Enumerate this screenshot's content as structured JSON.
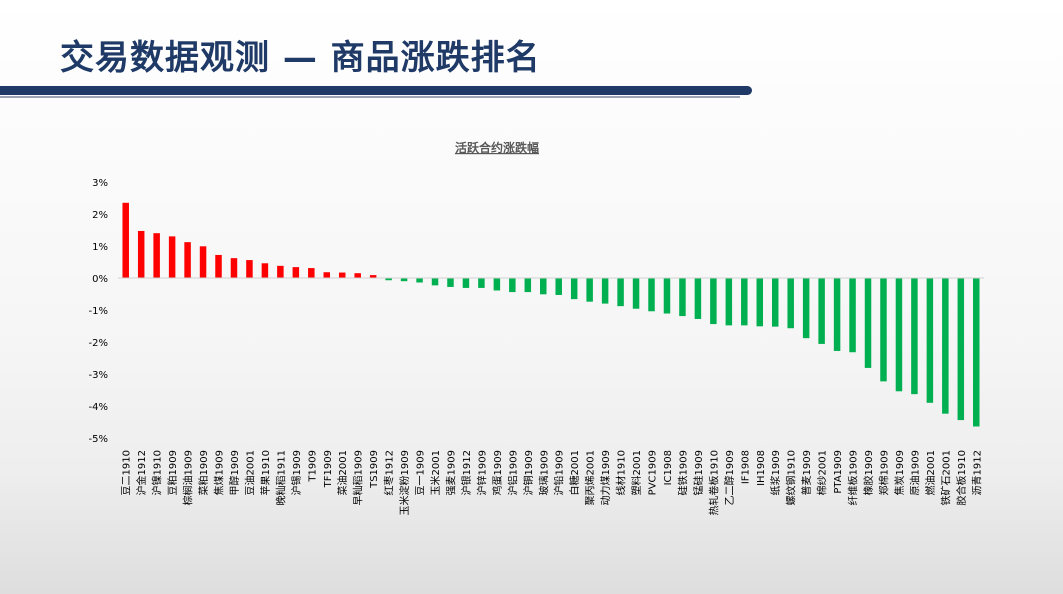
{
  "page": {
    "title": "交易数据观测 — 商品涨跌排名"
  },
  "colors": {
    "title": "#1f3a67",
    "positive": "#ff0000",
    "negative": "#00b050"
  },
  "chart_data": {
    "type": "bar",
    "title": "活跃合约涨跌幅",
    "xlabel": "",
    "ylabel": "",
    "ylim": [
      -5,
      3
    ],
    "yticks": [
      3,
      2,
      1,
      0,
      -1,
      -2,
      -3,
      -4,
      -5
    ],
    "ytick_labels": [
      "3%",
      "2%",
      "1%",
      "0%",
      "-1%",
      "-2%",
      "-3%",
      "-4%",
      "-5%"
    ],
    "grid": false,
    "legend": "none",
    "categories": [
      "豆二1910",
      "沪金1912",
      "沪镍1910",
      "豆粕1909",
      "棕榈油1909",
      "菜粕1909",
      "焦煤1909",
      "甲醇1909",
      "豆油2001",
      "苹果1910",
      "晚籼稻1911",
      "沪锡1909",
      "T1909",
      "TF1909",
      "菜油2001",
      "早籼稻1909",
      "TS1909",
      "红枣1912",
      "玉米淀粉1909",
      "豆一1909",
      "玉米2001",
      "强麦1909",
      "沪银1912",
      "沪锌1909",
      "鸡蛋1909",
      "沪铝1909",
      "沪铜1909",
      "玻璃1909",
      "沪铅1909",
      "白糖2001",
      "聚丙烯2001",
      "动力煤1909",
      "线材1910",
      "塑料2001",
      "PVC1909",
      "IC1908",
      "硅铁1909",
      "锰硅1909",
      "热轧卷板1910",
      "乙二醇1909",
      "IF1908",
      "IH1908",
      "纸浆1909",
      "螺纹钢1910",
      "普麦1909",
      "棉纱2001",
      "PTA1909",
      "纤维板1909",
      "橡胶1909",
      "郑棉1909",
      "焦炭1909",
      "原油1909",
      "燃油2001",
      "铁矿石2001",
      "胶合板1910",
      "沥青1912"
    ],
    "values": [
      2.35,
      1.47,
      1.4,
      1.3,
      1.12,
      0.99,
      0.72,
      0.62,
      0.56,
      0.46,
      0.38,
      0.34,
      0.31,
      0.18,
      0.17,
      0.15,
      0.09,
      -0.07,
      -0.1,
      -0.14,
      -0.23,
      -0.28,
      -0.31,
      -0.31,
      -0.39,
      -0.44,
      -0.44,
      -0.51,
      -0.53,
      -0.66,
      -0.74,
      -0.8,
      -0.88,
      -0.96,
      -1.04,
      -1.11,
      -1.19,
      -1.28,
      -1.44,
      -1.48,
      -1.48,
      -1.51,
      -1.52,
      -1.57,
      -1.88,
      -2.06,
      -2.28,
      -2.32,
      -2.81,
      -3.23,
      -3.54,
      -3.63,
      -3.9,
      -4.24,
      -4.44,
      -4.64
    ]
  }
}
